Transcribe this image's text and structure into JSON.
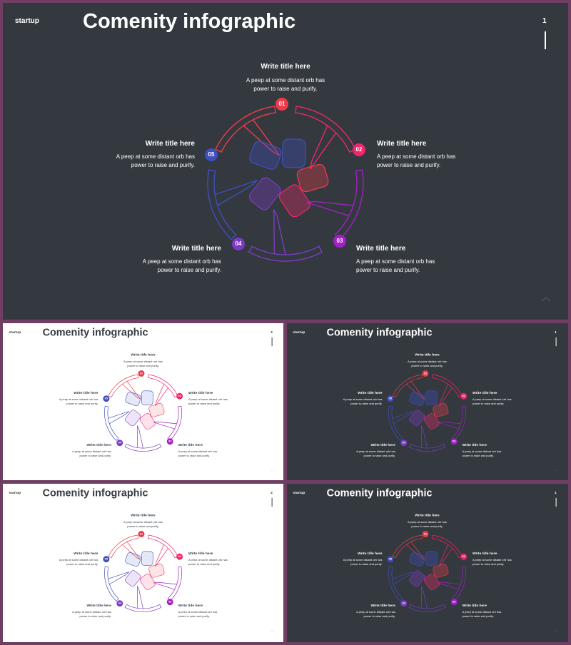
{
  "slides": [
    {
      "theme": "dark",
      "brand": "startup",
      "title": "Comenity infographic",
      "page": "1"
    },
    {
      "theme": "light",
      "brand": "startup",
      "title": "Comenity infographic",
      "page": "2"
    },
    {
      "theme": "dark",
      "brand": "startup",
      "title": "Comenity infographic",
      "page": "1"
    },
    {
      "theme": "light",
      "brand": "startup",
      "title": "Comenity infographic",
      "page": "2"
    },
    {
      "theme": "dark",
      "brand": "startup",
      "title": "Comenity infographic",
      "page": "1"
    }
  ],
  "points": [
    {
      "num": "01",
      "title": "Write title here",
      "desc": "A peep at some distant orb has\npower to raise and purify."
    },
    {
      "num": "02",
      "title": "Write title here",
      "desc": "A peep at some distant orb has\npower to raise and purify."
    },
    {
      "num": "03",
      "title": "Write title here",
      "desc": "A peep at some distant orb has\npower to raise and purify."
    },
    {
      "num": "04",
      "title": "Write title here",
      "desc": "A peep at some distant orb has\npower to raise and purify."
    },
    {
      "num": "05",
      "title": "Write title here",
      "desc": "A peep at some distant orb has\npower to raise and purify."
    }
  ],
  "colors": {
    "c01": "#ee3b4b",
    "c02": "#f0266a",
    "c03": "#a21fc7",
    "c04": "#7b3bc4",
    "c05": "#3f4fbf",
    "dark_bg": "#33393f",
    "light_bg": "#ffffff",
    "frame": "#6f3f63"
  },
  "icons": {
    "hands": "hands-circle-icon",
    "corner": "chevron-up-icon"
  }
}
